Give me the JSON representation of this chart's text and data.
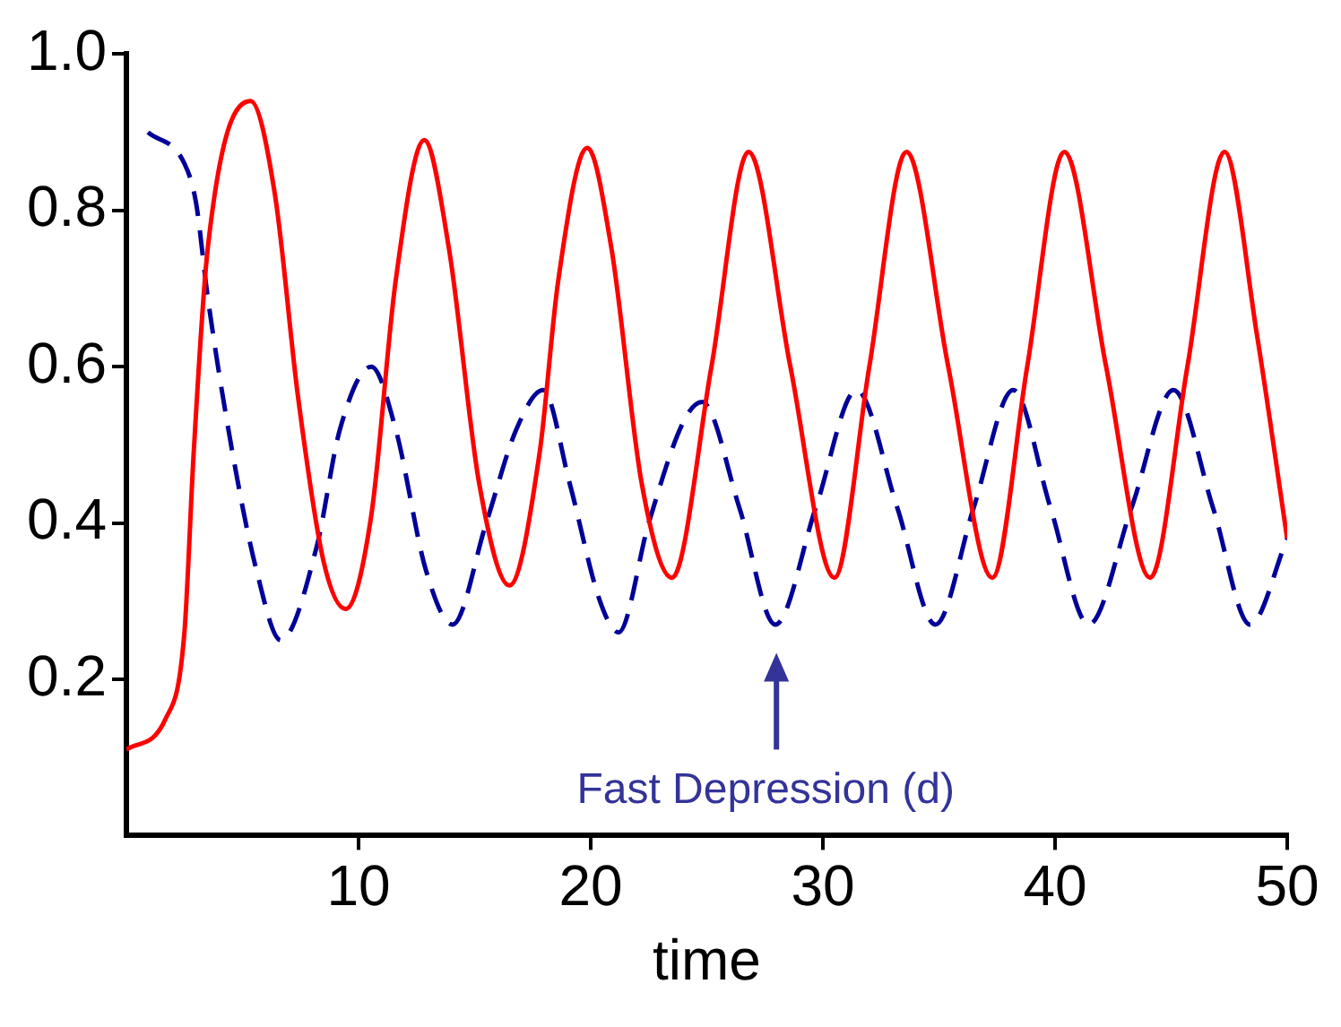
{
  "chart_data": {
    "type": "line",
    "xlabel": "time",
    "xlim": [
      0,
      50
    ],
    "xticks": [
      10,
      20,
      30,
      40,
      50
    ],
    "ylim": [
      0,
      1
    ],
    "yticks": [
      0.2,
      0.4,
      0.6,
      0.8,
      {
        "value": 1,
        "label": "1.0"
      }
    ],
    "grid": false,
    "legend": false,
    "marker": "none",
    "annotations": [
      "Fast Depression (d)"
    ],
    "series": [
      {
        "color": "#ff0000",
        "line_style": "solid",
        "x": [
          0,
          1.7,
          2.5,
          2.9,
          3.5,
          5.35,
          6.4,
          7.4,
          8.5,
          9.45,
          10.55,
          11.6,
          12.83,
          13.9,
          15.2,
          16.5,
          17.8,
          18.6,
          19.85,
          20.9,
          22.2,
          23.5,
          25.2,
          26.8,
          28.6,
          30.5,
          32.0,
          33.6,
          35.4,
          37.3,
          38.8,
          40.4,
          42.2,
          44.1,
          45.7,
          47.3,
          48.7,
          50
        ],
        "values": [
          0.11,
          0.15,
          0.26,
          0.49,
          0.75,
          0.94,
          0.82,
          0.56,
          0.35,
          0.29,
          0.41,
          0.71,
          0.89,
          0.75,
          0.45,
          0.32,
          0.49,
          0.71,
          0.88,
          0.75,
          0.45,
          0.33,
          0.6,
          0.875,
          0.6,
          0.33,
          0.6,
          0.875,
          0.6,
          0.33,
          0.6,
          0.875,
          0.6,
          0.33,
          0.6,
          0.875,
          0.64,
          0.38
        ]
      },
      {
        "color": "#000099",
        "line_style": "dashed",
        "x": [
          0.93,
          2.5,
          3.0,
          3.5,
          4.57,
          5.6,
          6.65,
          8.2,
          9.2,
          10.55,
          11.6,
          12.9,
          14.05,
          15.5,
          16.8,
          17.95,
          19.1,
          20.4,
          21.2,
          22.5,
          24.0,
          24.8,
          26.4,
          27.95,
          29.7,
          31.45,
          33.2,
          34.85,
          36.5,
          38.2,
          39.8,
          41.45,
          43.3,
          45.1,
          46.8,
          48.4,
          50
        ],
        "values": [
          0.9,
          0.86,
          0.81,
          0.69,
          0.49,
          0.34,
          0.25,
          0.37,
          0.52,
          0.6,
          0.52,
          0.34,
          0.27,
          0.4,
          0.52,
          0.57,
          0.45,
          0.3,
          0.26,
          0.4,
          0.53,
          0.555,
          0.42,
          0.27,
          0.42,
          0.57,
          0.42,
          0.27,
          0.42,
          0.57,
          0.42,
          0.27,
          0.42,
          0.57,
          0.42,
          0.27,
          0.38
        ]
      }
    ]
  }
}
